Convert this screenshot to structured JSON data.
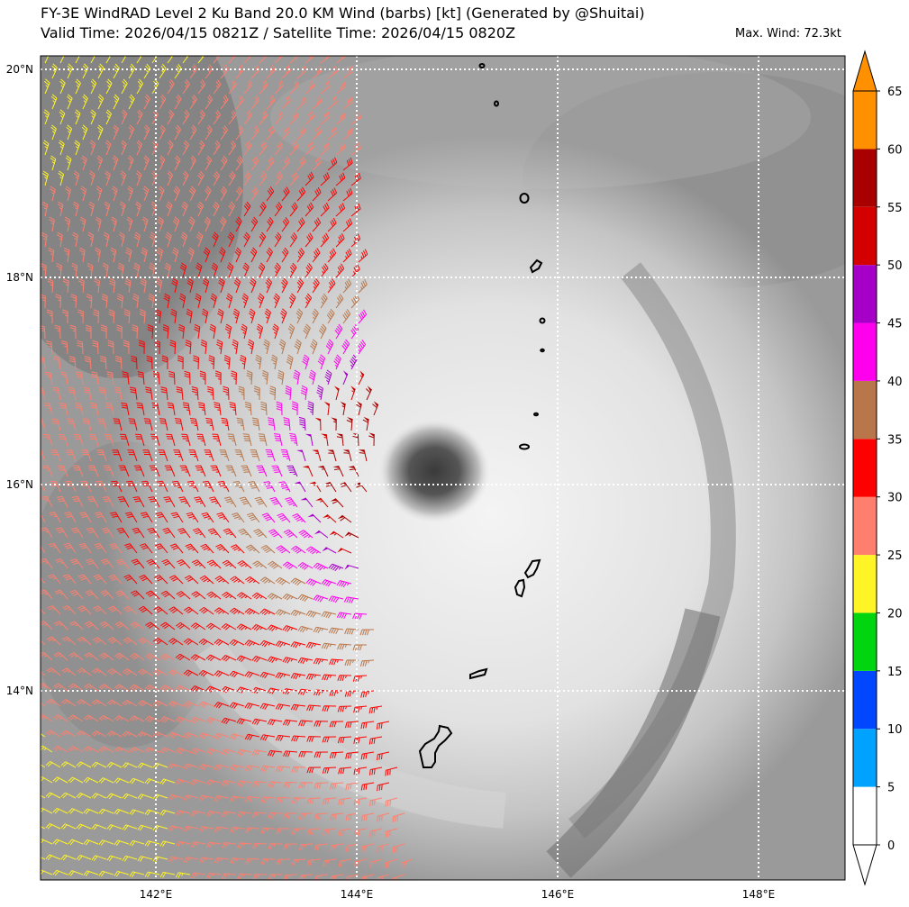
{
  "header": {
    "title_line1": "FY-3E WindRAD Level 2 Ku Band 20.0 KM Wind (barbs) [kt] (Generated by @Shuitai)",
    "title_line2": "Valid Time: 2026/04/15 0821Z / Satellite Time: 2026/04/15 0820Z",
    "max_wind": "Max. Wind: 72.3kt"
  },
  "map": {
    "lon_labels": [
      "142°E",
      "144°E",
      "146°E",
      "148°E"
    ],
    "lat_labels": [
      "20°N",
      "18°N",
      "16°N",
      "14°N"
    ],
    "storm_center": {
      "lon": 144.75,
      "lat": 16.1
    },
    "islands": [
      "Guam",
      "Rota",
      "Tinian",
      "Saipan",
      "Anatahan",
      "Sarigan",
      "Guguan",
      "Alamagan",
      "Pagan",
      "Agrihan",
      "Asuncion",
      "Maug"
    ]
  },
  "colorbar": {
    "tick_labels": [
      "0",
      "5",
      "10",
      "15",
      "20",
      "25",
      "30",
      "35",
      "40",
      "45",
      "50",
      "55",
      "60",
      "65"
    ],
    "bins": [
      {
        "from": 0,
        "to": 5,
        "color": "#ffffff"
      },
      {
        "from": 5,
        "to": 10,
        "color": "#00a2ff"
      },
      {
        "from": 10,
        "to": 15,
        "color": "#0047ff"
      },
      {
        "from": 15,
        "to": 20,
        "color": "#00d50f"
      },
      {
        "from": 20,
        "to": 25,
        "color": "#fff426"
      },
      {
        "from": 25,
        "to": 30,
        "color": "#ff7f6e"
      },
      {
        "from": 30,
        "to": 35,
        "color": "#ff0000"
      },
      {
        "from": 35,
        "to": 40,
        "color": "#b8764a"
      },
      {
        "from": 40,
        "to": 45,
        "color": "#ff00ee"
      },
      {
        "from": 45,
        "to": 50,
        "color": "#a600c8"
      },
      {
        "from": 50,
        "to": 55,
        "color": "#d40000"
      },
      {
        "from": 55,
        "to": 60,
        "color": "#a80000"
      },
      {
        "from": 60,
        "to": 65,
        "color": "#ff9000"
      }
    ],
    "max_arrow_color": "#ff9000"
  }
}
